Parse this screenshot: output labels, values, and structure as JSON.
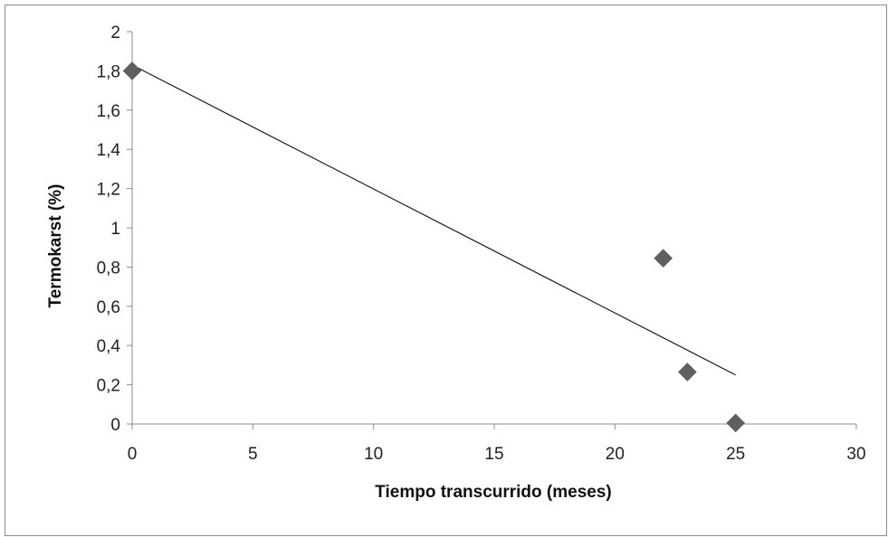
{
  "chart_data": {
    "type": "scatter",
    "title": "",
    "xlabel": "Tiempo transcurrido (meses)",
    "ylabel": "Termokarst (%)",
    "xlim": [
      0,
      30
    ],
    "ylim": [
      0,
      2
    ],
    "x_ticks": [
      "0",
      "5",
      "10",
      "15",
      "20",
      "25",
      "30"
    ],
    "y_ticks": [
      "0",
      "0,2",
      "0,4",
      "0,6",
      "0,8",
      "1",
      "1,2",
      "1,4",
      "1,6",
      "1,8",
      "2"
    ],
    "grid": false,
    "legend": "none",
    "series": [
      {
        "marker": "diamond",
        "color": "#5f5f5f",
        "points": [
          {
            "x": 0,
            "y": 1.8
          },
          {
            "x": 22,
            "y": 0.845
          },
          {
            "x": 23,
            "y": 0.265
          },
          {
            "x": 25,
            "y": 0.005
          }
        ]
      }
    ],
    "trendline": {
      "type": "linear",
      "color": "#1a1a1a",
      "points": [
        {
          "x": 0,
          "y": 1.83
        },
        {
          "x": 25,
          "y": 0.25
        }
      ]
    }
  }
}
